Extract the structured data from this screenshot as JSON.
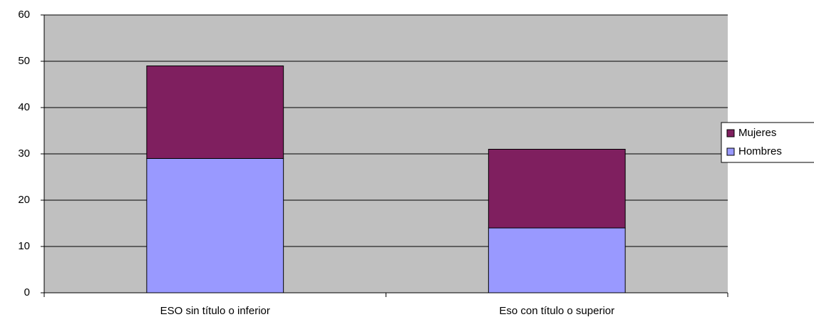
{
  "chart_data": {
    "type": "stacked_bar",
    "categories": [
      "ESO sin título o inferior",
      "Eso con título o superior"
    ],
    "series": [
      {
        "name": "Hombres",
        "color": "#9999ff",
        "values": [
          29,
          14
        ]
      },
      {
        "name": "Mujeres",
        "color": "#7f1f5f",
        "values": [
          20,
          17
        ]
      }
    ],
    "ylim": [
      0,
      60
    ],
    "yticks": [
      0,
      10,
      20,
      30,
      40,
      50,
      60
    ],
    "grid": true,
    "legend": "right"
  }
}
